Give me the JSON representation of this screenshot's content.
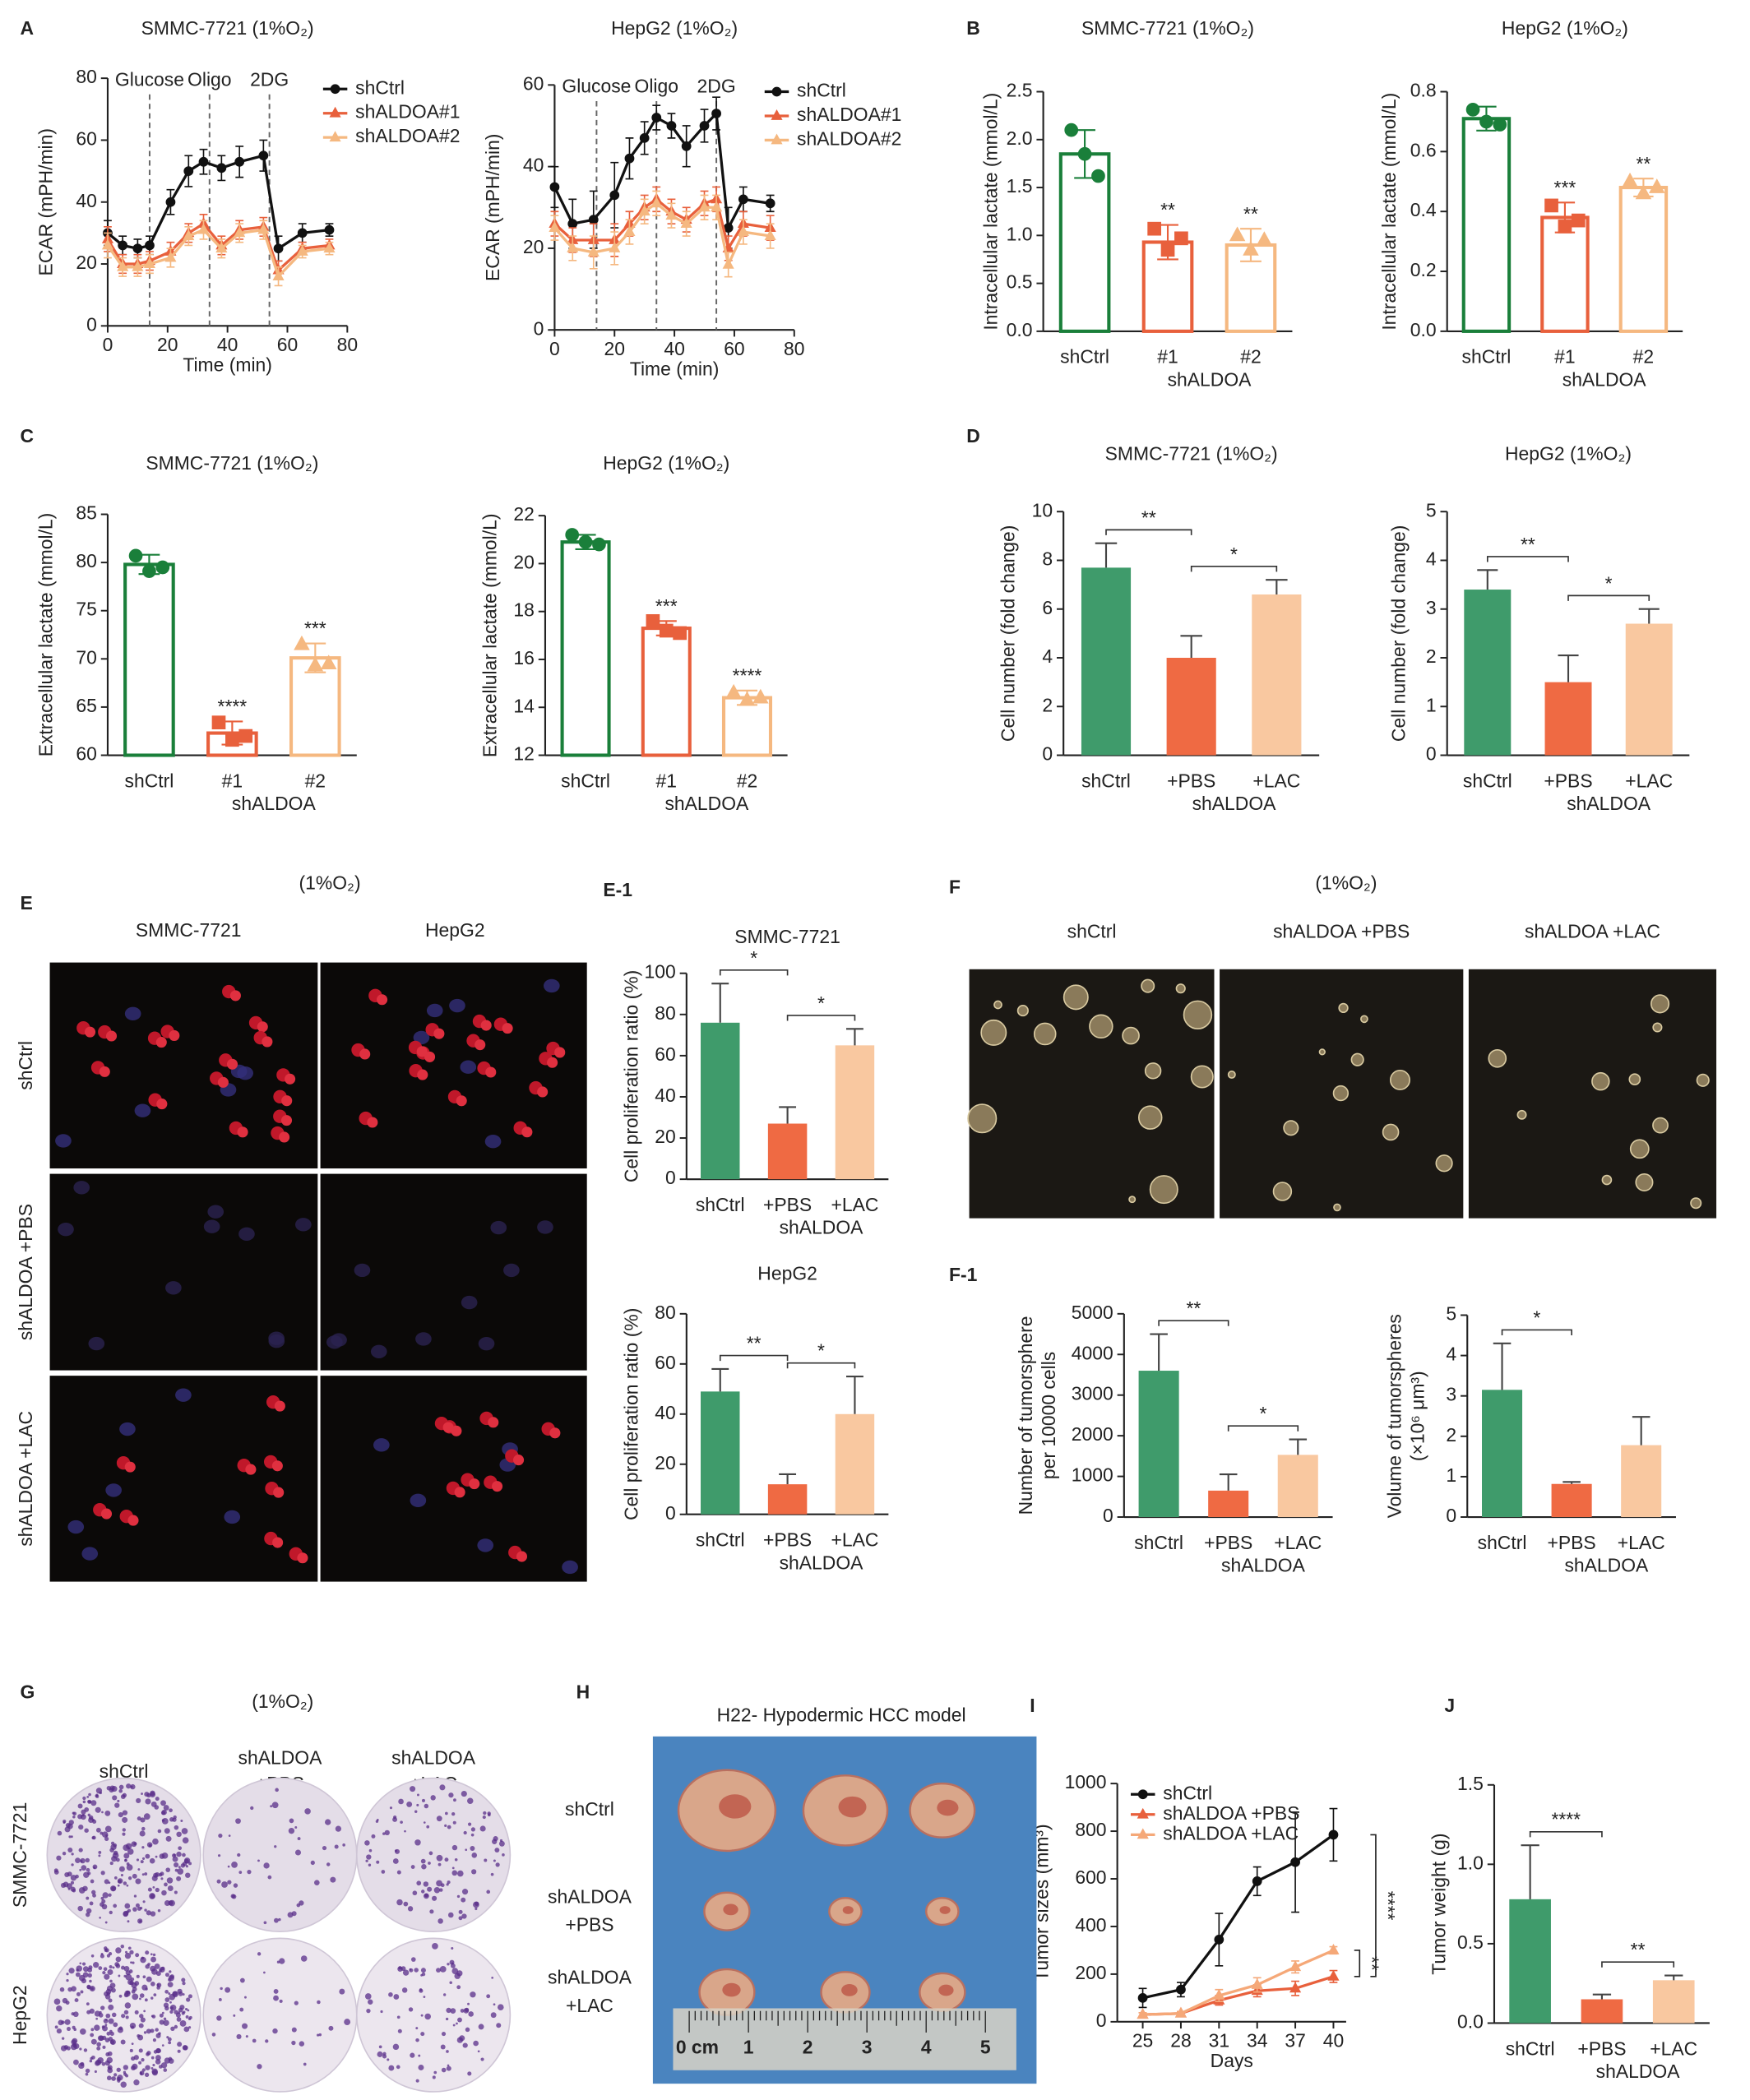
{
  "figure": {
    "panel_labels": [
      "A",
      "B",
      "C",
      "D",
      "E",
      "E-1",
      "F",
      "F-1",
      "G",
      "H",
      "I",
      "J"
    ],
    "E": {
      "title": "(1%O₂)",
      "columns": [
        "SMMC-7721",
        "HepG2"
      ],
      "rows": [
        "shCtrl",
        "shALDOA +PBS",
        "shALDOA +LAC"
      ]
    },
    "F": {
      "title": "(1%O₂)",
      "columns": [
        "shCtrl",
        "shALDOA +PBS",
        "shALDOA +LAC"
      ]
    },
    "G": {
      "title": "(1%O₂)",
      "columns": [
        [
          "shCtrl"
        ],
        [
          "shALDOA",
          "+PBS"
        ],
        [
          "shALDOA",
          "+LAC"
        ]
      ],
      "rows": [
        "SMMC-7721",
        "HepG2"
      ]
    },
    "H": {
      "title": "H22- Hypodermic HCC model",
      "rows": [
        [
          "shCtrl"
        ],
        [
          "shALDOA",
          "+PBS"
        ],
        [
          "shALDOA",
          "+LAC"
        ]
      ],
      "ruler_labels": [
        "0 cm",
        "1",
        "2",
        "3",
        "4",
        "5"
      ]
    }
  },
  "chart_data": [
    {
      "type": "line",
      "title": "SMMC-7721 (1%O₂)",
      "xlabel": "Time (min)",
      "ylabel": "ECAR (mPH/min)",
      "xlim": [
        0,
        80
      ],
      "xticks": [
        0,
        20,
        40,
        60,
        80
      ],
      "ylim": [
        0,
        80
      ],
      "yticks": [
        0,
        20,
        40,
        60,
        80
      ],
      "legend": "top-right",
      "events": [
        {
          "x": 14,
          "label": "Glucose"
        },
        {
          "x": 34,
          "label": "Oligo"
        },
        {
          "x": 54,
          "label": "2DG"
        }
      ],
      "x": [
        0,
        5,
        10,
        14,
        21,
        27,
        32,
        38,
        44,
        52,
        57,
        65,
        74
      ],
      "series": [
        {
          "name": "shCtrl",
          "color": "#111111",
          "marker": "circle",
          "values": [
            30,
            26,
            25,
            26,
            40,
            50,
            53,
            51,
            53,
            55,
            25,
            30,
            31
          ],
          "errors": [
            4,
            3,
            3,
            3,
            4,
            5,
            4,
            4,
            5,
            5,
            4,
            3,
            2
          ]
        },
        {
          "name": "shALDOA#1",
          "color": "#e8603c",
          "marker": "triangle",
          "values": [
            28,
            20,
            20,
            21,
            24,
            30,
            33,
            26,
            31,
            32,
            18,
            25,
            26
          ],
          "errors": [
            4,
            3,
            3,
            3,
            3,
            3,
            3,
            3,
            3,
            3,
            3,
            2,
            2
          ]
        },
        {
          "name": "shALDOA#2",
          "color": "#f5b880",
          "marker": "triangle",
          "values": [
            26,
            19,
            19,
            20,
            22,
            29,
            31,
            25,
            30,
            31,
            16,
            24,
            25
          ],
          "errors": [
            4,
            3,
            3,
            3,
            3,
            3,
            3,
            3,
            3,
            3,
            3,
            2,
            2
          ]
        }
      ]
    },
    {
      "type": "line",
      "title": "HepG2 (1%O₂)",
      "xlabel": "Time (min)",
      "ylabel": "ECAR (mPH/min)",
      "xlim": [
        0,
        80
      ],
      "xticks": [
        0,
        20,
        40,
        60,
        80
      ],
      "ylim": [
        0,
        60
      ],
      "yticks": [
        0,
        20,
        40,
        60
      ],
      "legend": "top-right",
      "events": [
        {
          "x": 14,
          "label": "Glucose"
        },
        {
          "x": 34,
          "label": "Oligo"
        },
        {
          "x": 54,
          "label": "2DG"
        }
      ],
      "x": [
        0,
        6,
        13,
        20,
        25,
        30,
        34,
        39,
        44,
        50,
        54,
        58,
        63,
        72
      ],
      "series": [
        {
          "name": "shCtrl",
          "color": "#111111",
          "marker": "circle",
          "values": [
            35,
            26,
            27,
            33,
            42,
            47,
            52,
            50,
            45,
            50,
            53,
            25,
            32,
            31
          ],
          "errors": [
            5,
            6,
            7,
            8,
            5,
            4,
            3,
            3,
            5,
            4,
            4,
            5,
            3,
            2
          ]
        },
        {
          "name": "shALDOA#1",
          "color": "#e8603c",
          "marker": "triangle",
          "values": [
            26,
            22,
            22,
            22,
            26,
            30,
            32,
            29,
            27,
            31,
            32,
            20,
            26,
            25
          ],
          "errors": [
            3,
            3,
            4,
            4,
            3,
            3,
            3,
            3,
            3,
            3,
            3,
            3,
            3,
            3
          ]
        },
        {
          "name": "shALDOA#2",
          "color": "#f5b880",
          "marker": "triangle",
          "values": [
            25,
            20,
            19,
            20,
            24,
            29,
            31,
            28,
            26,
            30,
            30,
            16,
            24,
            23
          ],
          "errors": [
            3,
            3,
            4,
            4,
            3,
            3,
            3,
            3,
            3,
            3,
            3,
            3,
            3,
            3
          ]
        }
      ]
    },
    {
      "type": "bar",
      "style": "outline",
      "error_style": "both",
      "title": "SMMC-7721 (1%O₂)",
      "ylabel": "Intracellular lactate (mmol/L)",
      "categories": [
        "shCtrl",
        "#1",
        "#2"
      ],
      "group_label": "shALDOA",
      "values": [
        1.85,
        0.93,
        0.9
      ],
      "errors": [
        0.25,
        0.18,
        0.17
      ],
      "points": [
        [
          2.1,
          1.85,
          1.62
        ],
        [
          1.07,
          0.85,
          0.97
        ],
        [
          1.0,
          0.85,
          0.95
        ]
      ],
      "point_markers": [
        "circle",
        "square",
        "triangle"
      ],
      "colors": [
        "#1a7f3a",
        "#e8603c",
        "#f5b880"
      ],
      "ylim": [
        0,
        2.5
      ],
      "yticks": [
        {
          "value": 0,
          "label": "0.0"
        },
        0.5,
        {
          "value": 1,
          "label": "1.0"
        },
        1.5,
        {
          "value": 2,
          "label": "2.0"
        },
        2.5
      ],
      "annotations": [
        {
          "index": 1,
          "text": "**"
        },
        {
          "index": 2,
          "text": "**"
        }
      ]
    },
    {
      "type": "bar",
      "style": "outline",
      "error_style": "both",
      "title": "HepG2 (1%O₂)",
      "ylabel": "Intracellular lactate (mmol/L)",
      "categories": [
        "shCtrl",
        "#1",
        "#2"
      ],
      "group_label": "shALDOA",
      "values": [
        0.71,
        0.38,
        0.48
      ],
      "errors": [
        0.04,
        0.05,
        0.03
      ],
      "points": [
        [
          0.74,
          0.7,
          0.69
        ],
        [
          0.42,
          0.35,
          0.37
        ],
        [
          0.5,
          0.46,
          0.48
        ]
      ],
      "point_markers": [
        "circle",
        "square",
        "triangle"
      ],
      "colors": [
        "#1a7f3a",
        "#e8603c",
        "#f5b880"
      ],
      "ylim": [
        0,
        0.8
      ],
      "yticks": [
        {
          "value": 0,
          "label": "0.0"
        },
        0.2,
        0.4,
        0.6,
        0.8
      ],
      "annotations": [
        {
          "index": 1,
          "text": "***"
        },
        {
          "index": 2,
          "text": "**"
        }
      ]
    },
    {
      "type": "bar",
      "style": "outline",
      "error_style": "both",
      "title": "SMMC-7721 (1%O₂)",
      "ylabel": "Extracellular lactate (mmol/L)",
      "categories": [
        "shCtrl",
        "#1",
        "#2"
      ],
      "group_label": "shALDOA",
      "values": [
        79.8,
        62.3,
        70.1
      ],
      "errors": [
        1,
        1.2,
        1.5
      ],
      "points": [
        [
          80.7,
          79.1,
          79.5
        ],
        [
          63.4,
          61.6,
          62.0
        ],
        [
          71.5,
          69.3,
          69.5
        ]
      ],
      "point_markers": [
        "circle",
        "square",
        "triangle"
      ],
      "colors": [
        "#1a7f3a",
        "#e8603c",
        "#f5b880"
      ],
      "ylim": [
        60,
        85
      ],
      "yticks": [
        60,
        65,
        70,
        75,
        80,
        85
      ],
      "annotations": [
        {
          "index": 1,
          "text": "****"
        },
        {
          "index": 2,
          "text": "***"
        }
      ]
    },
    {
      "type": "bar",
      "style": "outline",
      "error_style": "both",
      "title": "HepG2 (1%O₂)",
      "ylabel": "Extracellular lactate (mmol/L)",
      "categories": [
        "shCtrl",
        "#1",
        "#2"
      ],
      "group_label": "shALDOA",
      "values": [
        20.9,
        17.3,
        14.4
      ],
      "errors": [
        0.3,
        0.3,
        0.3
      ],
      "points": [
        [
          21.2,
          20.9,
          20.8
        ],
        [
          17.6,
          17.2,
          17.1
        ],
        [
          14.6,
          14.3,
          14.4
        ]
      ],
      "point_markers": [
        "circle",
        "square",
        "triangle"
      ],
      "colors": [
        "#1a7f3a",
        "#e8603c",
        "#f5b880"
      ],
      "ylim": [
        12,
        22
      ],
      "yticks": [
        12,
        14,
        16,
        18,
        20,
        22
      ],
      "annotations": [
        {
          "index": 1,
          "text": "***"
        },
        {
          "index": 2,
          "text": "****"
        }
      ]
    },
    {
      "type": "bar",
      "style": "filled",
      "error_style": "up",
      "title": "SMMC-7721 (1%O₂)",
      "ylabel": "Cell number (fold change)",
      "categories": [
        "shCtrl",
        "+PBS",
        "+LAC"
      ],
      "group_label": "shALDOA",
      "values": [
        7.7,
        4.0,
        6.6
      ],
      "errors": [
        1.0,
        0.9,
        0.6
      ],
      "colors": [
        "#3f9b6b",
        "#ef6a43",
        "#f9c8a0"
      ],
      "ylim": [
        0,
        10
      ],
      "yticks": [
        0,
        2,
        4,
        6,
        8,
        10
      ],
      "brackets": [
        {
          "from": 0,
          "to": 1,
          "text": "**"
        },
        {
          "from": 1,
          "to": 2,
          "text": "*"
        }
      ]
    },
    {
      "type": "bar",
      "style": "filled",
      "error_style": "up",
      "title": "HepG2 (1%O₂)",
      "ylabel": "Cell number (fold change)",
      "categories": [
        "shCtrl",
        "+PBS",
        "+LAC"
      ],
      "group_label": "shALDOA",
      "values": [
        3.4,
        1.5,
        2.7
      ],
      "errors": [
        0.4,
        0.55,
        0.3
      ],
      "colors": [
        "#3f9b6b",
        "#ef6a43",
        "#f9c8a0"
      ],
      "ylim": [
        0,
        5
      ],
      "yticks": [
        0,
        1,
        2,
        3,
        4,
        5
      ],
      "brackets": [
        {
          "from": 0,
          "to": 1,
          "text": "**"
        },
        {
          "from": 1,
          "to": 2,
          "text": "*"
        }
      ]
    },
    {
      "type": "bar",
      "style": "filled",
      "error_style": "up",
      "title": "SMMC-7721",
      "ylabel": "Cell proliferation ratio (%)",
      "categories": [
        "shCtrl",
        "+PBS",
        "+LAC"
      ],
      "group_label": "shALDOA",
      "values": [
        76,
        27,
        65
      ],
      "errors": [
        19,
        8,
        8
      ],
      "colors": [
        "#3f9b6b",
        "#ef6a43",
        "#f9c8a0"
      ],
      "ylim": [
        0,
        100
      ],
      "yticks": [
        0,
        20,
        40,
        60,
        80,
        100
      ],
      "brackets": [
        {
          "from": 0,
          "to": 1,
          "text": "*"
        },
        {
          "from": 1,
          "to": 2,
          "text": "*"
        }
      ]
    },
    {
      "type": "bar",
      "style": "filled",
      "error_style": "up",
      "title": "HepG2",
      "ylabel": "Cell proliferation ratio (%)",
      "categories": [
        "shCtrl",
        "+PBS",
        "+LAC"
      ],
      "group_label": "shALDOA",
      "values": [
        49,
        12,
        40
      ],
      "errors": [
        9,
        4,
        15
      ],
      "colors": [
        "#3f9b6b",
        "#ef6a43",
        "#f9c8a0"
      ],
      "ylim": [
        0,
        80
      ],
      "yticks": [
        0,
        20,
        40,
        60,
        80
      ],
      "brackets": [
        {
          "from": 0,
          "to": 1,
          "text": "**"
        },
        {
          "from": 1,
          "to": 2,
          "text": "*"
        }
      ]
    },
    {
      "type": "bar",
      "style": "filled",
      "error_style": "up",
      "ylabel": [
        "Number of tumorsphere",
        "per 10000 cells"
      ],
      "categories": [
        "shCtrl",
        "+PBS",
        "+LAC"
      ],
      "group_label": "shALDOA",
      "values": [
        3600,
        650,
        1530
      ],
      "errors": [
        900,
        400,
        380
      ],
      "colors": [
        "#3f9b6b",
        "#ef6a43",
        "#f9c8a0"
      ],
      "ylim": [
        0,
        5000
      ],
      "yticks": [
        0,
        1000,
        2000,
        3000,
        4000,
        5000
      ],
      "brackets": [
        {
          "from": 0,
          "to": 1,
          "text": "**"
        },
        {
          "from": 1,
          "to": 2,
          "text": "*"
        }
      ]
    },
    {
      "type": "bar",
      "style": "filled",
      "error_style": "up",
      "ylabel": [
        "Volume of tumorspheres",
        "(×10⁶ μm³)"
      ],
      "categories": [
        "shCtrl",
        "+PBS",
        "+LAC"
      ],
      "group_label": "shALDOA",
      "values": [
        3.15,
        0.82,
        1.78
      ],
      "errors": [
        1.15,
        0.05,
        0.7
      ],
      "colors": [
        "#3f9b6b",
        "#ef6a43",
        "#f9c8a0"
      ],
      "ylim": [
        0,
        5
      ],
      "yticks": [
        0,
        1,
        2,
        3,
        4,
        5
      ],
      "brackets": [
        {
          "from": 0,
          "to": 1,
          "text": "*"
        }
      ]
    },
    {
      "type": "line",
      "xlabel": "Days",
      "ylabel": "Tumor sizes (mm³)",
      "xlim": [
        23,
        41
      ],
      "xticks": [
        25,
        28,
        31,
        34,
        37,
        40
      ],
      "ylim": [
        0,
        1000
      ],
      "yticks": [
        0,
        200,
        400,
        600,
        800,
        1000
      ],
      "legend": "top-left",
      "x": [
        25,
        28,
        31,
        34,
        37,
        40
      ],
      "series": [
        {
          "name": "shCtrl",
          "color": "#111111",
          "marker": "circle",
          "values": [
            100,
            135,
            345,
            590,
            670,
            785
          ],
          "errors": [
            40,
            30,
            110,
            60,
            210,
            110
          ]
        },
        {
          "name": "shALDOA +PBS",
          "color": "#e8603c",
          "marker": "triangle",
          "values": [
            30,
            35,
            90,
            130,
            140,
            190
          ],
          "errors": [
            8,
            8,
            20,
            25,
            30,
            25
          ]
        },
        {
          "name": "shALDOA +LAC",
          "color": "#f5a878",
          "marker": "triangle",
          "values": [
            30,
            35,
            110,
            155,
            230,
            300
          ],
          "errors": [
            8,
            8,
            25,
            30,
            25,
            15
          ]
        }
      ],
      "comparisons": [
        {
          "series": [
            0,
            1
          ],
          "text": "****"
        },
        {
          "series": [
            1,
            2
          ],
          "text": "**"
        }
      ]
    },
    {
      "type": "bar",
      "style": "filled",
      "error_style": "up",
      "ylabel": "Tumor weight (g)",
      "categories": [
        "shCtrl",
        "+PBS",
        "+LAC"
      ],
      "group_label": "shALDOA",
      "values": [
        0.78,
        0.15,
        0.27
      ],
      "errors": [
        0.34,
        0.03,
        0.03
      ],
      "colors": [
        "#3f9b6b",
        "#ef6a43",
        "#f9c8a0"
      ],
      "ylim": [
        0,
        1.5
      ],
      "yticks": [
        {
          "value": 0,
          "label": "0.0"
        },
        0.5,
        {
          "value": 1,
          "label": "1.0"
        },
        1.5
      ],
      "brackets": [
        {
          "from": 0,
          "to": 1,
          "text": "****"
        },
        {
          "from": 1,
          "to": 2,
          "text": "**"
        }
      ]
    }
  ]
}
